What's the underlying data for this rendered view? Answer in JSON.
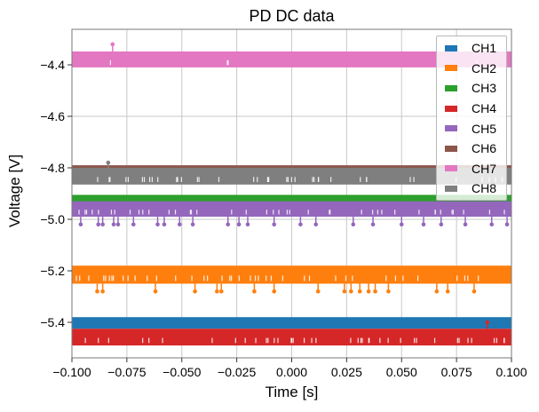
{
  "chart_data": {
    "type": "line",
    "title": "PD DC data",
    "xlabel": "Time [s]",
    "ylabel": "Voltage [V]",
    "xlim": [
      -0.1,
      0.1
    ],
    "ylim": [
      -5.538,
      -4.262
    ],
    "grid": true,
    "legend_position": "top-right",
    "xticks": [
      -0.1,
      -0.075,
      -0.05,
      -0.025,
      0.0,
      0.025,
      0.05,
      0.075,
      0.1
    ],
    "xtick_labels": [
      "−0.100",
      "−0.075",
      "−0.050",
      "−0.025",
      "0.000",
      "0.025",
      "0.050",
      "0.075",
      "0.100"
    ],
    "yticks": [
      -4.4,
      -4.6,
      -4.8,
      -5.0,
      -5.2,
      -5.4
    ],
    "ytick_labels": [
      "−4.4",
      "−4.6",
      "−4.8",
      "−5.0",
      "−5.2",
      "−5.4"
    ],
    "series": [
      {
        "name": "CH1",
        "color": "#1f77b4",
        "band": [
          -5.425,
          -5.38
        ],
        "outliers": []
      },
      {
        "name": "CH2",
        "color": "#ff7f0e",
        "band": [
          -5.25,
          -5.18
        ],
        "outliers": [
          [
            -0.0885,
            -5.28
          ],
          [
            -0.086,
            -5.28
          ],
          [
            -0.062,
            -5.28
          ],
          [
            -0.044,
            -5.28
          ],
          [
            -0.034,
            -5.28
          ],
          [
            -0.032,
            -5.28
          ],
          [
            -0.017,
            -5.28
          ],
          [
            -0.008,
            -5.28
          ],
          [
            0.012,
            -5.28
          ],
          [
            0.024,
            -5.28
          ],
          [
            0.027,
            -5.28
          ],
          [
            0.031,
            -5.28
          ],
          [
            0.035,
            -5.28
          ],
          [
            0.038,
            -5.28
          ],
          [
            0.044,
            -5.28
          ],
          [
            0.066,
            -5.28
          ],
          [
            0.071,
            -5.28
          ],
          [
            0.083,
            -5.28
          ]
        ]
      },
      {
        "name": "CH3",
        "color": "#2ca02c",
        "band": [
          -4.96,
          -4.905
        ],
        "outliers": []
      },
      {
        "name": "CH4",
        "color": "#d62728",
        "band": [
          -5.49,
          -5.425
        ],
        "outliers": [
          [
            0.089,
            -5.4
          ]
        ]
      },
      {
        "name": "CH5",
        "color": "#9467bd",
        "band": [
          -4.99,
          -4.93
        ],
        "outliers": [
          [
            -0.096,
            -5.02
          ],
          [
            -0.088,
            -5.02
          ],
          [
            -0.086,
            -5.02
          ],
          [
            -0.081,
            -5.02
          ],
          [
            -0.079,
            -5.02
          ],
          [
            -0.072,
            -5.02
          ],
          [
            -0.061,
            -5.02
          ],
          [
            -0.058,
            -5.02
          ],
          [
            -0.051,
            -5.02
          ],
          [
            -0.045,
            -5.02
          ],
          [
            -0.029,
            -5.02
          ],
          [
            -0.024,
            -5.02
          ],
          [
            -0.02,
            -5.02
          ],
          [
            -0.008,
            -5.02
          ],
          [
            0.004,
            -5.02
          ],
          [
            0.011,
            -5.02
          ],
          [
            0.028,
            -5.02
          ],
          [
            0.037,
            -5.02
          ],
          [
            0.05,
            -5.02
          ],
          [
            0.06,
            -5.02
          ],
          [
            0.068,
            -5.02
          ],
          [
            0.079,
            -5.02
          ],
          [
            0.091,
            -5.02
          ],
          [
            0.098,
            -5.02
          ]
        ]
      },
      {
        "name": "CH6",
        "color": "#8c564b",
        "band": [
          -4.8,
          -4.79
        ],
        "outliers": []
      },
      {
        "name": "CH7",
        "color": "#e377c2",
        "band": [
          -4.41,
          -4.348
        ],
        "outliers": [
          [
            -0.0815,
            -4.32
          ]
        ]
      },
      {
        "name": "CH8",
        "color": "#7f7f7f",
        "band": [
          -4.865,
          -4.8
        ],
        "outliers": [
          [
            -0.0835,
            -4.78
          ]
        ]
      }
    ]
  }
}
